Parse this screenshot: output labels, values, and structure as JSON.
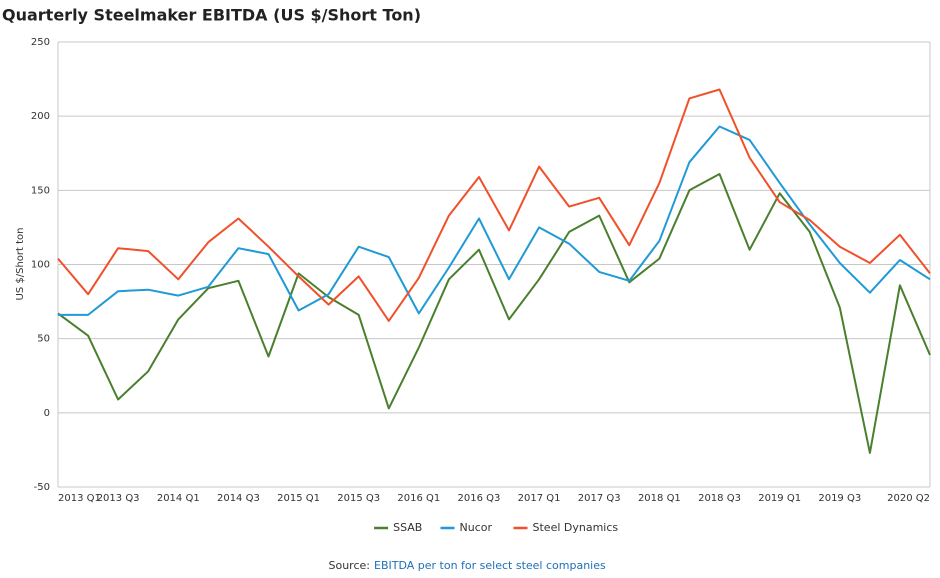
{
  "chart_data": {
    "type": "line",
    "title": "Quarterly Steelmaker EBITDA (US $/Short Ton)",
    "y_label": "US $/Short ton",
    "categories": [
      "2013 Q1",
      null,
      "2013 Q3",
      null,
      "2014 Q1",
      null,
      "2014 Q3",
      null,
      "2015 Q1",
      null,
      "2015 Q3",
      null,
      "2016 Q1",
      null,
      "2016 Q3",
      null,
      "2017 Q1",
      null,
      "2017 Q3",
      null,
      "2018 Q1",
      null,
      "2018 Q3",
      null,
      "2019 Q1",
      null,
      "2019 Q3",
      null,
      null,
      "2020 Q2"
    ],
    "series": [
      {
        "name": "SSAB",
        "color": "#4a7f2e",
        "values": [
          67,
          52,
          9,
          28,
          63,
          84,
          89,
          38,
          94,
          78,
          66,
          3,
          44,
          90,
          110,
          63,
          90,
          122,
          133,
          88,
          104,
          150,
          161,
          110,
          148,
          122,
          71,
          -27,
          86,
          39
        ]
      },
      {
        "name": "Nucor",
        "color": "#1f9ad6",
        "values": [
          66,
          66,
          82,
          83,
          79,
          85,
          111,
          107,
          69,
          80,
          112,
          105,
          67,
          98,
          131,
          90,
          125,
          114,
          95,
          89,
          116,
          169,
          193,
          184,
          155,
          127,
          101,
          81,
          103,
          90
        ]
      },
      {
        "name": "Steel Dynamics",
        "color": "#f0502a",
        "values": [
          104,
          80,
          111,
          109,
          90,
          115,
          131,
          112,
          92,
          73,
          92,
          62,
          91,
          133,
          159,
          123,
          166,
          139,
          145,
          113,
          155,
          212,
          218,
          172,
          142,
          130,
          112,
          101,
          120,
          94
        ]
      }
    ],
    "ylim": [
      -50,
      250
    ],
    "yticks": [
      -50,
      0,
      50,
      100,
      150,
      200,
      250
    ],
    "grid": true,
    "legend": "bottom",
    "source_label": "Source:",
    "source_text": "EBITDA per ton for select steel companies"
  }
}
